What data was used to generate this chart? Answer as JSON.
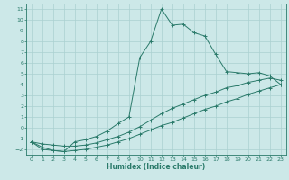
{
  "title": "",
  "xlabel": "Humidex (Indice chaleur)",
  "bg_color": "#cce8e8",
  "grid_color": "#aad0d0",
  "line_color": "#2a7a6a",
  "spine_color": "#2a7a6a",
  "xlim": [
    -0.5,
    23.5
  ],
  "ylim": [
    -2.5,
    11.5
  ],
  "xticks": [
    0,
    1,
    2,
    3,
    4,
    5,
    6,
    7,
    8,
    9,
    10,
    11,
    12,
    13,
    14,
    15,
    16,
    17,
    18,
    19,
    20,
    21,
    22,
    23
  ],
  "yticks": [
    -2,
    -1,
    0,
    1,
    2,
    3,
    4,
    5,
    6,
    7,
    8,
    9,
    10,
    11
  ],
  "line1_x": [
    0,
    1,
    2,
    3,
    4,
    5,
    6,
    7,
    8,
    9,
    10,
    11,
    12,
    13,
    14,
    15,
    16,
    17,
    18,
    19,
    20,
    21,
    22,
    23
  ],
  "line1_y": [
    -1.3,
    -2.0,
    -2.1,
    -2.2,
    -1.3,
    -1.1,
    -0.8,
    -0.3,
    0.4,
    1.0,
    6.5,
    8.0,
    11.0,
    9.5,
    9.6,
    8.8,
    8.5,
    6.8,
    5.2,
    5.1,
    5.0,
    5.1,
    4.8,
    4.0
  ],
  "line2_x": [
    0,
    1,
    2,
    3,
    4,
    5,
    6,
    7,
    8,
    9,
    10,
    11,
    12,
    13,
    14,
    15,
    16,
    17,
    18,
    19,
    20,
    21,
    22,
    23
  ],
  "line2_y": [
    -1.3,
    -1.5,
    -1.6,
    -1.7,
    -1.7,
    -1.6,
    -1.4,
    -1.1,
    -0.8,
    -0.4,
    0.1,
    0.7,
    1.3,
    1.8,
    2.2,
    2.6,
    3.0,
    3.3,
    3.7,
    3.9,
    4.2,
    4.4,
    4.6,
    4.4
  ],
  "line3_x": [
    0,
    1,
    2,
    3,
    4,
    5,
    6,
    7,
    8,
    9,
    10,
    11,
    12,
    13,
    14,
    15,
    16,
    17,
    18,
    19,
    20,
    21,
    22,
    23
  ],
  "line3_y": [
    -1.3,
    -1.8,
    -2.1,
    -2.2,
    -2.1,
    -2.0,
    -1.8,
    -1.6,
    -1.3,
    -1.0,
    -0.6,
    -0.2,
    0.2,
    0.5,
    0.9,
    1.3,
    1.7,
    2.0,
    2.4,
    2.7,
    3.1,
    3.4,
    3.7,
    4.0
  ]
}
